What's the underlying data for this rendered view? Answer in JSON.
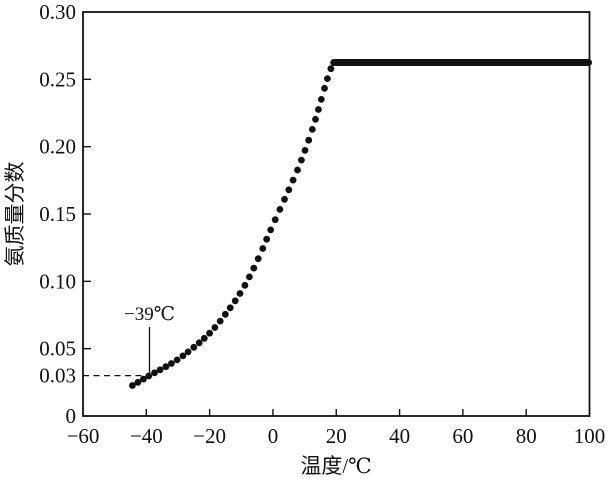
{
  "chart_data": {
    "type": "scatter",
    "title": "",
    "xlabel": "温度/℃",
    "ylabel": "氨质量分数",
    "xlim": [
      -60,
      100
    ],
    "ylim": [
      0,
      0.3
    ],
    "grid": false,
    "legend": "none",
    "x_ticks": {
      "values": [
        -60,
        -40,
        -20,
        0,
        20,
        40,
        60,
        80,
        100
      ],
      "labels": [
        "−60",
        "−40",
        "−20",
        "0",
        "20",
        "40",
        "60",
        "80",
        "100"
      ]
    },
    "y_ticks": {
      "values": [
        0,
        0.05,
        0.1,
        0.15,
        0.2,
        0.25,
        0.3
      ],
      "labels": [
        "0",
        "0.05",
        "0.10",
        "0.15",
        "0.20",
        "0.25",
        "0.30"
      ]
    },
    "extra_y_reference": {
      "label": "0.03",
      "value": 0.03,
      "line_style": "dashed"
    },
    "annotation": {
      "text": "−39℃",
      "x": -39,
      "points_to_y": 0.03
    },
    "series": [
      {
        "name": "rising-curve",
        "style": "dots",
        "color": "#111111",
        "points": [
          [
            -44.5,
            0.0225
          ],
          [
            -39,
            0.03
          ],
          [
            -31,
            0.0405
          ],
          [
            -25,
            0.051
          ],
          [
            -20,
            0.0615
          ],
          [
            -16,
            0.0725
          ],
          [
            -10,
            0.0925
          ],
          [
            -5,
            0.115
          ],
          [
            0,
            0.142
          ],
          [
            5,
            0.168
          ],
          [
            9,
            0.19
          ],
          [
            13,
            0.217
          ],
          [
            17,
            0.249
          ],
          [
            19,
            0.262
          ]
        ]
      },
      {
        "name": "plateau",
        "style": "solid-line",
        "color": "#111111",
        "points": [
          [
            19.2,
            0.2625
          ],
          [
            100,
            0.2625
          ]
        ]
      }
    ]
  }
}
